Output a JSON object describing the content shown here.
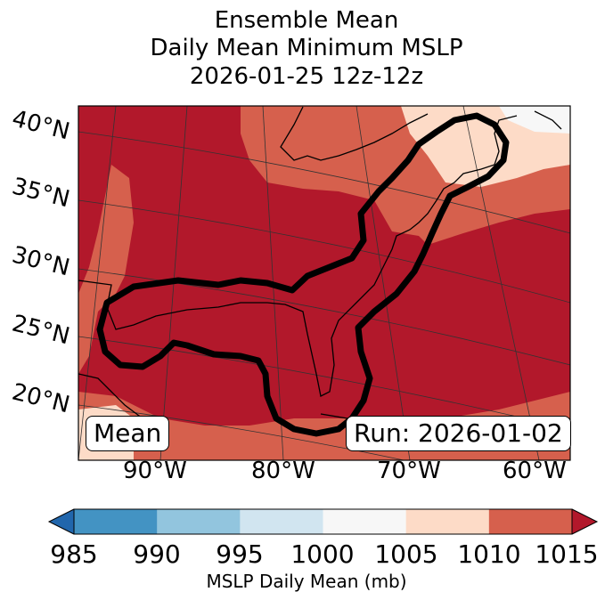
{
  "title": {
    "line1": "Ensemble Mean",
    "line2": "Daily Mean Minimum MSLP",
    "line3": "2026-01-25 12z-12z"
  },
  "map": {
    "lat_labels": [
      "40°N",
      "35°N",
      "30°N",
      "25°N",
      "20°N"
    ],
    "lon_labels": [
      "90°W",
      "80°W",
      "70°W",
      "60°W"
    ],
    "badge_left": "Mean",
    "badge_right": "Run: 2026-01-02",
    "colors": {
      "dark_red": "#b2182b",
      "red": "#d6604d",
      "peach": "#fddbc7",
      "white": "#f7f7f7"
    }
  },
  "colorbar": {
    "ticks": [
      "985",
      "990",
      "995",
      "1000",
      "1005",
      "1010",
      "1015"
    ],
    "label": "MSLP Daily Mean (mb)",
    "colors": [
      "#2166ac",
      "#4393c3",
      "#92c5de",
      "#d1e5f0",
      "#f7f7f7",
      "#fddbc7",
      "#d6604d",
      "#b2182b"
    ]
  }
}
